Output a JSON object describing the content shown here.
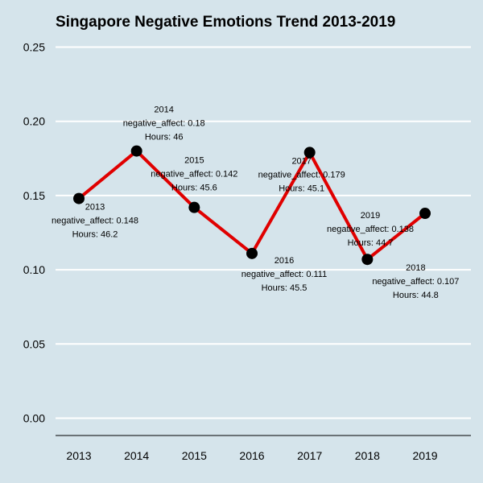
{
  "chart_data": {
    "type": "line",
    "title": "Singapore Negative Emotions Trend 2013-2019",
    "xlabel": "",
    "ylabel": "",
    "categories": [
      "2013",
      "2014",
      "2015",
      "2016",
      "2017",
      "2018",
      "2019"
    ],
    "ylim": [
      0,
      0.25
    ],
    "yticks": [
      "0.00",
      "0.05",
      "0.10",
      "0.15",
      "0.20",
      "0.25"
    ],
    "grid": true,
    "legend": "none",
    "line_color": "#e00000",
    "marker_color": "#000000",
    "background_color": "#d5e4eb",
    "series": [
      {
        "values": [
          0.148,
          0.18,
          0.142,
          0.111,
          0.179,
          0.107,
          0.138
        ],
        "hours": [
          46.2,
          46,
          45.6,
          45.5,
          45.1,
          44.8,
          44.7
        ]
      }
    ],
    "annotations": [
      [
        "2013",
        "negative_affect: 0.148",
        "Hours: 46.2"
      ],
      [
        "2014",
        "negative_affect: 0.18",
        "Hours: 46"
      ],
      [
        "2015",
        "negative_affect: 0.142",
        "Hours: 45.6"
      ],
      [
        "2016",
        "negative_affect: 0.111",
        "Hours: 45.5"
      ],
      [
        "2017",
        "negative_affect: 0.179",
        "Hours: 45.1"
      ],
      [
        "2018",
        "negative_affect: 0.107",
        "Hours: 44.8"
      ],
      [
        "2019",
        "negative_affect: 0.138",
        "Hours: 44.7"
      ]
    ]
  }
}
